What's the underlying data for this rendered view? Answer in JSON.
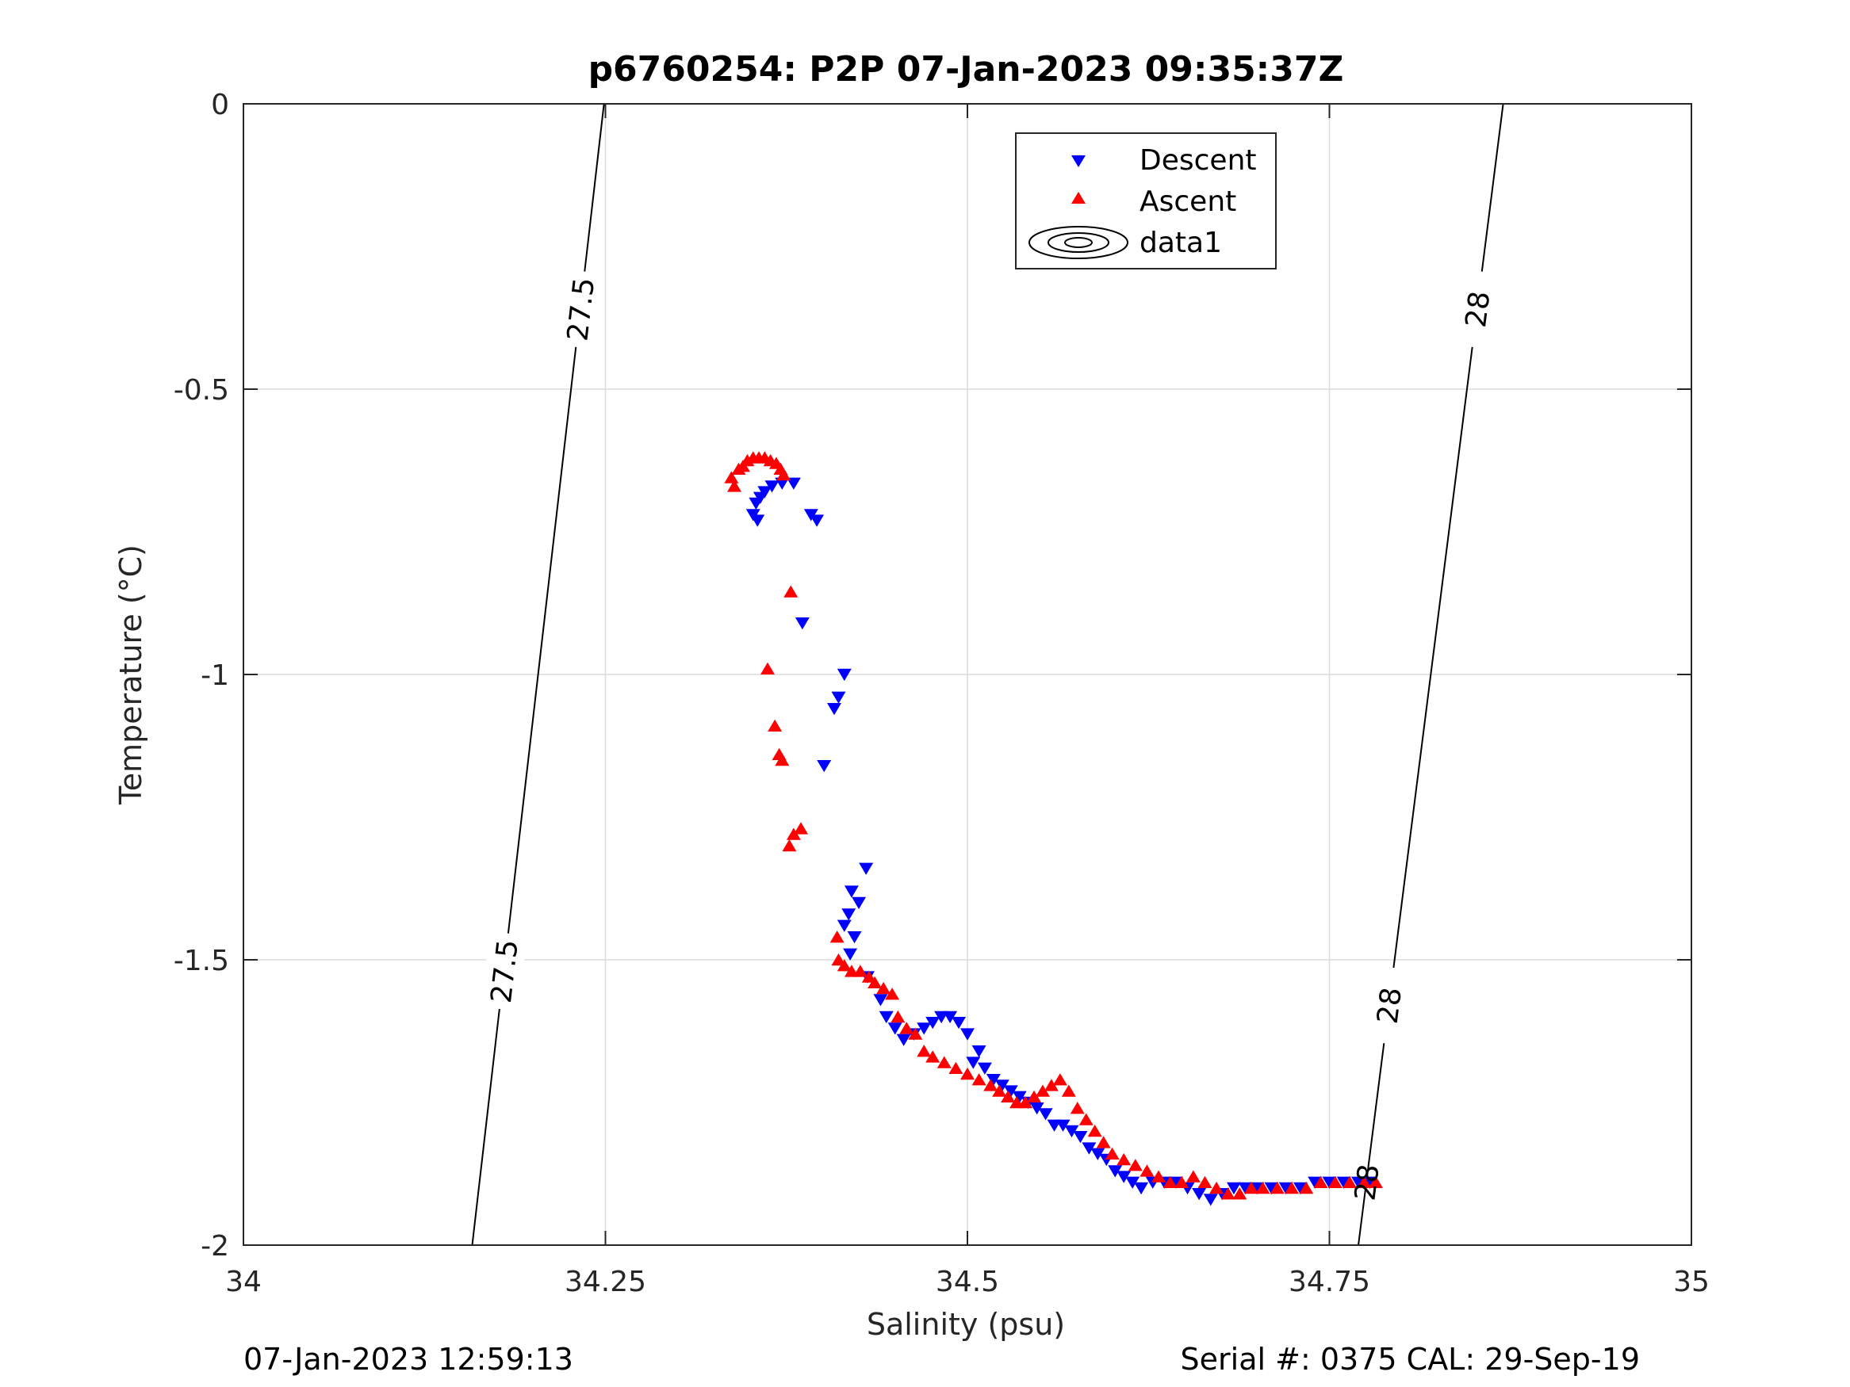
{
  "chart_data": {
    "type": "scatter",
    "title": "p6760254: P2P 07-Jan-2023 09:35:37Z",
    "xlabel": "Salinity (psu)",
    "ylabel": "Temperature (°C)",
    "xlim": [
      34,
      35
    ],
    "ylim": [
      -2,
      0
    ],
    "xticks": [
      "34",
      "34.25",
      "34.5",
      "34.75",
      "35"
    ],
    "yticks": [
      "0",
      "-0.5",
      "-1",
      "-1.5",
      "-2"
    ],
    "grid": true,
    "legend_position": "top-center",
    "legend": [
      "Descent",
      "Ascent",
      "data1"
    ],
    "contours": [
      {
        "level_label": "27.5",
        "points": [
          [
            34.158,
            -2.0
          ],
          [
            34.249,
            0.0
          ]
        ]
      },
      {
        "level_label": "28",
        "points": [
          [
            34.77,
            -2.0
          ],
          [
            34.87,
            0.0
          ]
        ]
      }
    ],
    "series": [
      {
        "name": "Descent",
        "marker": "triangle-down",
        "color": "#0000ff",
        "points": [
          [
            34.355,
            -0.73
          ],
          [
            34.352,
            -0.72
          ],
          [
            34.354,
            -0.7
          ],
          [
            34.357,
            -0.69
          ],
          [
            34.36,
            -0.68
          ],
          [
            34.365,
            -0.67
          ],
          [
            34.372,
            -0.665
          ],
          [
            34.38,
            -0.665
          ],
          [
            34.392,
            -0.72
          ],
          [
            34.396,
            -0.73
          ],
          [
            34.386,
            -0.91
          ],
          [
            34.415,
            -1.0
          ],
          [
            34.411,
            -1.04
          ],
          [
            34.408,
            -1.06
          ],
          [
            34.401,
            -1.16
          ],
          [
            34.43,
            -1.34
          ],
          [
            34.42,
            -1.38
          ],
          [
            34.425,
            -1.4
          ],
          [
            34.418,
            -1.42
          ],
          [
            34.415,
            -1.44
          ],
          [
            34.422,
            -1.46
          ],
          [
            34.419,
            -1.49
          ],
          [
            34.431,
            -1.53
          ],
          [
            34.44,
            -1.57
          ],
          [
            34.444,
            -1.6
          ],
          [
            34.45,
            -1.62
          ],
          [
            34.456,
            -1.64
          ],
          [
            34.463,
            -1.63
          ],
          [
            34.47,
            -1.62
          ],
          [
            34.476,
            -1.61
          ],
          [
            34.482,
            -1.6
          ],
          [
            34.488,
            -1.6
          ],
          [
            34.494,
            -1.61
          ],
          [
            34.5,
            -1.63
          ],
          [
            34.508,
            -1.66
          ],
          [
            34.504,
            -1.68
          ],
          [
            34.512,
            -1.69
          ],
          [
            34.518,
            -1.71
          ],
          [
            34.524,
            -1.72
          ],
          [
            34.53,
            -1.73
          ],
          [
            34.536,
            -1.74
          ],
          [
            34.542,
            -1.75
          ],
          [
            34.548,
            -1.76
          ],
          [
            34.554,
            -1.77
          ],
          [
            34.56,
            -1.79
          ],
          [
            34.566,
            -1.79
          ],
          [
            34.572,
            -1.8
          ],
          [
            34.578,
            -1.81
          ],
          [
            34.584,
            -1.83
          ],
          [
            34.59,
            -1.84
          ],
          [
            34.596,
            -1.85
          ],
          [
            34.602,
            -1.87
          ],
          [
            34.608,
            -1.88
          ],
          [
            34.614,
            -1.89
          ],
          [
            34.62,
            -1.9
          ],
          [
            34.628,
            -1.89
          ],
          [
            34.636,
            -1.89
          ],
          [
            34.644,
            -1.89
          ],
          [
            34.652,
            -1.9
          ],
          [
            34.66,
            -1.91
          ],
          [
            34.668,
            -1.92
          ],
          [
            34.676,
            -1.91
          ],
          [
            34.684,
            -1.9
          ],
          [
            34.692,
            -1.9
          ],
          [
            34.7,
            -1.9
          ],
          [
            34.71,
            -1.9
          ],
          [
            34.72,
            -1.9
          ],
          [
            34.73,
            -1.9
          ],
          [
            34.74,
            -1.89
          ],
          [
            34.75,
            -1.89
          ],
          [
            34.76,
            -1.89
          ],
          [
            34.77,
            -1.89
          ],
          [
            34.778,
            -1.89
          ]
        ]
      },
      {
        "name": "Ascent",
        "marker": "triangle-up",
        "color": "#ff0000",
        "points": [
          [
            34.337,
            -0.655
          ],
          [
            34.339,
            -0.67
          ],
          [
            34.342,
            -0.64
          ],
          [
            34.345,
            -0.635
          ],
          [
            34.348,
            -0.625
          ],
          [
            34.352,
            -0.62
          ],
          [
            34.356,
            -0.62
          ],
          [
            34.36,
            -0.62
          ],
          [
            34.364,
            -0.625
          ],
          [
            34.368,
            -0.63
          ],
          [
            34.371,
            -0.64
          ],
          [
            34.373,
            -0.65
          ],
          [
            34.378,
            -0.855
          ],
          [
            34.362,
            -0.99
          ],
          [
            34.367,
            -1.09
          ],
          [
            34.37,
            -1.14
          ],
          [
            34.372,
            -1.15
          ],
          [
            34.385,
            -1.27
          ],
          [
            34.38,
            -1.28
          ],
          [
            34.377,
            -1.3
          ],
          [
            34.41,
            -1.46
          ],
          [
            34.411,
            -1.5
          ],
          [
            34.415,
            -1.51
          ],
          [
            34.42,
            -1.52
          ],
          [
            34.426,
            -1.52
          ],
          [
            34.432,
            -1.53
          ],
          [
            34.436,
            -1.54
          ],
          [
            34.442,
            -1.55
          ],
          [
            34.448,
            -1.56
          ],
          [
            34.452,
            -1.6
          ],
          [
            34.458,
            -1.62
          ],
          [
            34.464,
            -1.63
          ],
          [
            34.47,
            -1.66
          ],
          [
            34.476,
            -1.67
          ],
          [
            34.484,
            -1.68
          ],
          [
            34.492,
            -1.69
          ],
          [
            34.5,
            -1.7
          ],
          [
            34.508,
            -1.71
          ],
          [
            34.516,
            -1.72
          ],
          [
            34.522,
            -1.73
          ],
          [
            34.528,
            -1.74
          ],
          [
            34.534,
            -1.75
          ],
          [
            34.54,
            -1.75
          ],
          [
            34.546,
            -1.74
          ],
          [
            34.552,
            -1.73
          ],
          [
            34.558,
            -1.72
          ],
          [
            34.564,
            -1.71
          ],
          [
            34.57,
            -1.73
          ],
          [
            34.576,
            -1.76
          ],
          [
            34.582,
            -1.78
          ],
          [
            34.588,
            -1.8
          ],
          [
            34.594,
            -1.82
          ],
          [
            34.6,
            -1.84
          ],
          [
            34.608,
            -1.85
          ],
          [
            34.616,
            -1.86
          ],
          [
            34.624,
            -1.87
          ],
          [
            34.632,
            -1.88
          ],
          [
            34.64,
            -1.89
          ],
          [
            34.648,
            -1.89
          ],
          [
            34.656,
            -1.88
          ],
          [
            34.664,
            -1.89
          ],
          [
            34.672,
            -1.9
          ],
          [
            34.68,
            -1.91
          ],
          [
            34.688,
            -1.91
          ],
          [
            34.696,
            -1.9
          ],
          [
            34.704,
            -1.9
          ],
          [
            34.714,
            -1.9
          ],
          [
            34.724,
            -1.9
          ],
          [
            34.734,
            -1.9
          ],
          [
            34.744,
            -1.89
          ],
          [
            34.754,
            -1.89
          ],
          [
            34.764,
            -1.89
          ],
          [
            34.774,
            -1.89
          ],
          [
            34.782,
            -1.89
          ]
        ]
      }
    ]
  },
  "footer": {
    "left": "07-Jan-2023 12:59:13",
    "right": "Serial #: 0375  CAL: 29-Sep-19"
  },
  "colors": {
    "descent": "#0000ff",
    "ascent": "#ff0000",
    "grid": "#dcdcdc",
    "axis": "#262626"
  }
}
